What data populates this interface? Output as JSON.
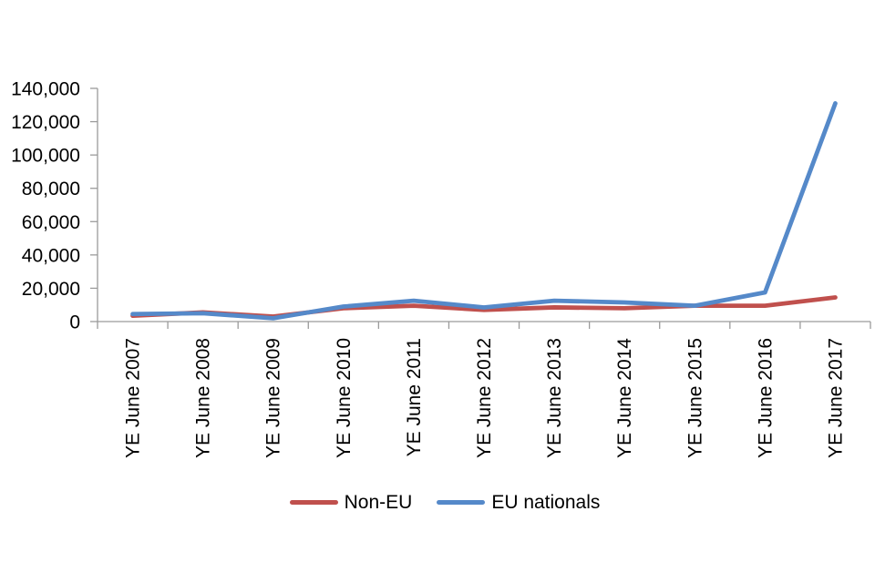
{
  "chart_data": {
    "type": "line",
    "categories": [
      "YE June 2007",
      "YE June 2008",
      "YE June 2009",
      "YE June 2010",
      "YE June 2011",
      "YE June 2012",
      "YE June 2013",
      "YE June 2014",
      "YE June 2015",
      "YE June 2016",
      "YE June 2017"
    ],
    "series": [
      {
        "name": "Non-EU",
        "color": "#C0504D",
        "values": [
          3500,
          5500,
          3000,
          8000,
          9500,
          7000,
          8500,
          8000,
          9500,
          9500,
          14500
        ]
      },
      {
        "name": "EU nationals",
        "color": "#5589C9",
        "values": [
          4500,
          5000,
          2000,
          9000,
          12500,
          8500,
          12500,
          11500,
          9500,
          17500,
          131000
        ]
      }
    ],
    "ylim": [
      0,
      140000
    ],
    "ytick_step": 20000,
    "ytick_labels": [
      "0",
      "20,000",
      "40,000",
      "60,000",
      "80,000",
      "100,000",
      "120,000",
      "140,000"
    ],
    "grid": false,
    "legend_position": "bottom",
    "axis_color": "#9B9B9B",
    "text_color": "#000000"
  }
}
